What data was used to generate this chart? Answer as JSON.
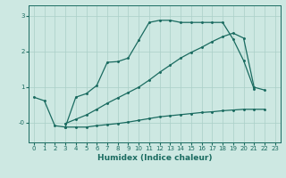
{
  "background_color": "#cde8e2",
  "grid_color": "#aacfc8",
  "line_color": "#1a6b60",
  "xlabel": "Humidex (Indice chaleur)",
  "xlim": [
    -0.5,
    23.5
  ],
  "ylim": [
    -0.55,
    3.3
  ],
  "yticks": [
    0,
    1,
    2,
    3
  ],
  "ytick_labels": [
    "-0",
    "1",
    "2",
    "3"
  ],
  "xticks": [
    0,
    1,
    2,
    3,
    4,
    5,
    6,
    7,
    8,
    9,
    10,
    11,
    12,
    13,
    14,
    15,
    16,
    17,
    18,
    19,
    20,
    21,
    22,
    23
  ],
  "line1_x": [
    0,
    1,
    2,
    3,
    4,
    5,
    6,
    7,
    8,
    9,
    10,
    11,
    12,
    13,
    14,
    15,
    16,
    17,
    18,
    19,
    20,
    21
  ],
  "line1_y": [
    0.72,
    0.62,
    -0.08,
    -0.12,
    0.72,
    0.82,
    1.05,
    1.7,
    1.72,
    1.82,
    2.32,
    2.82,
    2.88,
    2.88,
    2.82,
    2.82,
    2.82,
    2.82,
    2.82,
    2.35,
    1.75,
    0.95
  ],
  "line2_x": [
    3,
    4,
    5,
    6,
    7,
    8,
    9,
    10,
    11,
    12,
    13,
    14,
    15,
    16,
    17,
    18,
    19,
    20,
    21,
    22
  ],
  "line2_y": [
    -0.12,
    -0.12,
    -0.12,
    -0.08,
    -0.05,
    -0.02,
    0.02,
    0.07,
    0.12,
    0.17,
    0.2,
    0.23,
    0.26,
    0.29,
    0.31,
    0.34,
    0.36,
    0.38,
    0.38,
    0.38
  ],
  "line3_x": [
    3,
    4,
    5,
    6,
    7,
    8,
    9,
    10,
    11,
    12,
    13,
    14,
    15,
    16,
    17,
    18,
    19,
    20,
    21,
    22
  ],
  "line3_y": [
    -0.02,
    0.1,
    0.22,
    0.38,
    0.55,
    0.7,
    0.85,
    1.0,
    1.2,
    1.42,
    1.62,
    1.82,
    1.98,
    2.12,
    2.28,
    2.42,
    2.52,
    2.38,
    1.0,
    0.92
  ]
}
